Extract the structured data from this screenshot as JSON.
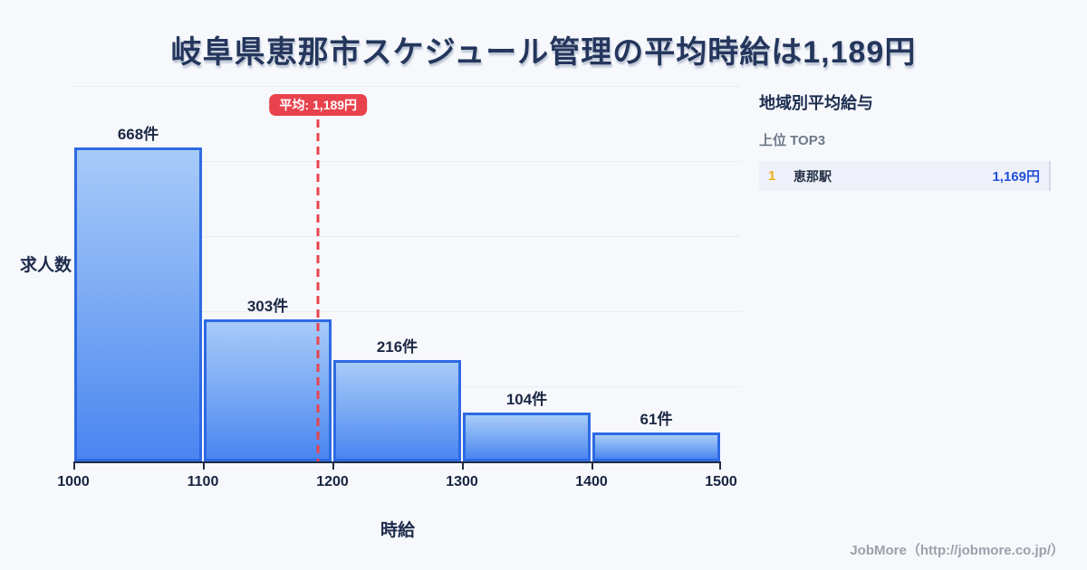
{
  "page": {
    "title": "岐阜県恵那市スケジュール管理の平均時給は1,189円",
    "background": "#f7f8fc",
    "footer": "JobMore（http://jobmore.co.jp/）"
  },
  "chart_data": {
    "type": "bar",
    "title": "岐阜県恵那市スケジュール管理の平均時給は1,189円",
    "categories": [
      "1000-1100",
      "1100-1200",
      "1200-1300",
      "1300-1400",
      "1400-1500"
    ],
    "values": [
      668,
      303,
      216,
      104,
      61
    ],
    "bar_labels": [
      "668件",
      "303件",
      "216件",
      "104件",
      "61件"
    ],
    "x_ticks": [
      "1000",
      "1100",
      "1200",
      "1300",
      "1400",
      "1500"
    ],
    "xlabel": "時給",
    "ylabel": "求人数",
    "xlim": [
      1000,
      1500
    ],
    "ylim": [
      0,
      800
    ],
    "grid": true,
    "legend": false,
    "mean_line": {
      "value": 1189,
      "label": "平均: 1,189円",
      "color": "#e8434d"
    },
    "colors": {
      "bar_fill_top": "#a7cbf8",
      "bar_fill_bottom": "#4a85f1",
      "bar_border": "#2d6ae3",
      "gridline": "#e8ecf4",
      "axis": "#212d45"
    }
  },
  "sidebar": {
    "title": "地域別平均給与",
    "subtitle": "上位 TOP3",
    "rows": [
      {
        "rank": "1",
        "name": "恵那駅",
        "value": "1,169円"
      }
    ],
    "colors": {
      "rank": "#f0ac17",
      "value": "#2152d9",
      "row_bg": "#eef1f9"
    }
  }
}
